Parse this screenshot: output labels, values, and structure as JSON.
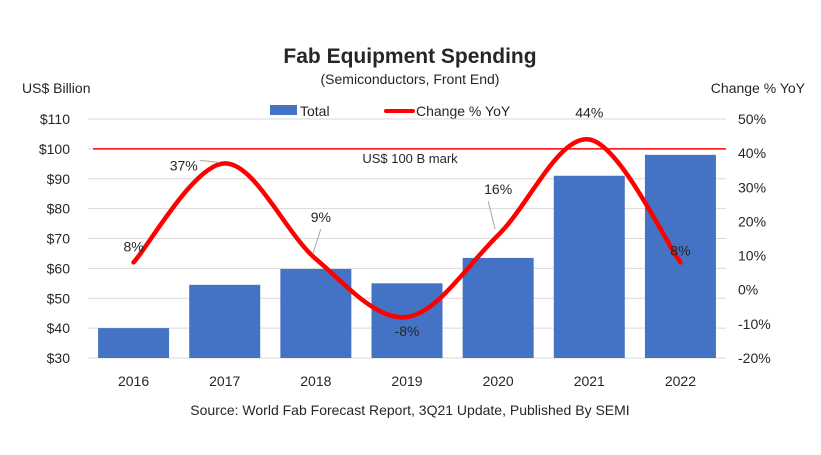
{
  "chart_data": {
    "type": "bar+line",
    "title": "Fab Equipment Spending",
    "subtitle": "(Semiconductors, Front End)",
    "ylabel_left": "US$ Billion",
    "ylabel_right": "Change % YoY",
    "categories": [
      "2016",
      "2017",
      "2018",
      "2019",
      "2020",
      "2021",
      "2022"
    ],
    "series": [
      {
        "name": "Total",
        "type": "bar",
        "axis": "left",
        "color": "#4472C4",
        "values": [
          40,
          54.5,
          59.8,
          55,
          63.5,
          91,
          98
        ]
      },
      {
        "name": "Change % YoY",
        "type": "line",
        "axis": "right",
        "color": "#FF0000",
        "values": [
          8,
          37,
          9,
          -8,
          16,
          44,
          8
        ],
        "labels": [
          "8%",
          "37%",
          "9%",
          "-8%",
          "16%",
          "44%",
          "8%"
        ]
      }
    ],
    "left_axis": {
      "range": [
        30,
        110
      ],
      "ticks": [
        "$30",
        "$40",
        "$50",
        "$60",
        "$70",
        "$80",
        "$90",
        "$100",
        "$110"
      ]
    },
    "right_axis": {
      "range": [
        -20,
        50
      ],
      "ticks": [
        "-20%",
        "-10%",
        "0%",
        "10%",
        "20%",
        "30%",
        "40%",
        "50%"
      ]
    },
    "reference_line": {
      "value": 100,
      "label": "US$ 100 B mark",
      "color": "#FF0000"
    },
    "legend": {
      "placement": "top-center",
      "entries": [
        "Total",
        "Change % YoY"
      ]
    },
    "grid": true,
    "source": "Source: World Fab Forecast Report, 3Q21 Update, Published By SEMI"
  }
}
